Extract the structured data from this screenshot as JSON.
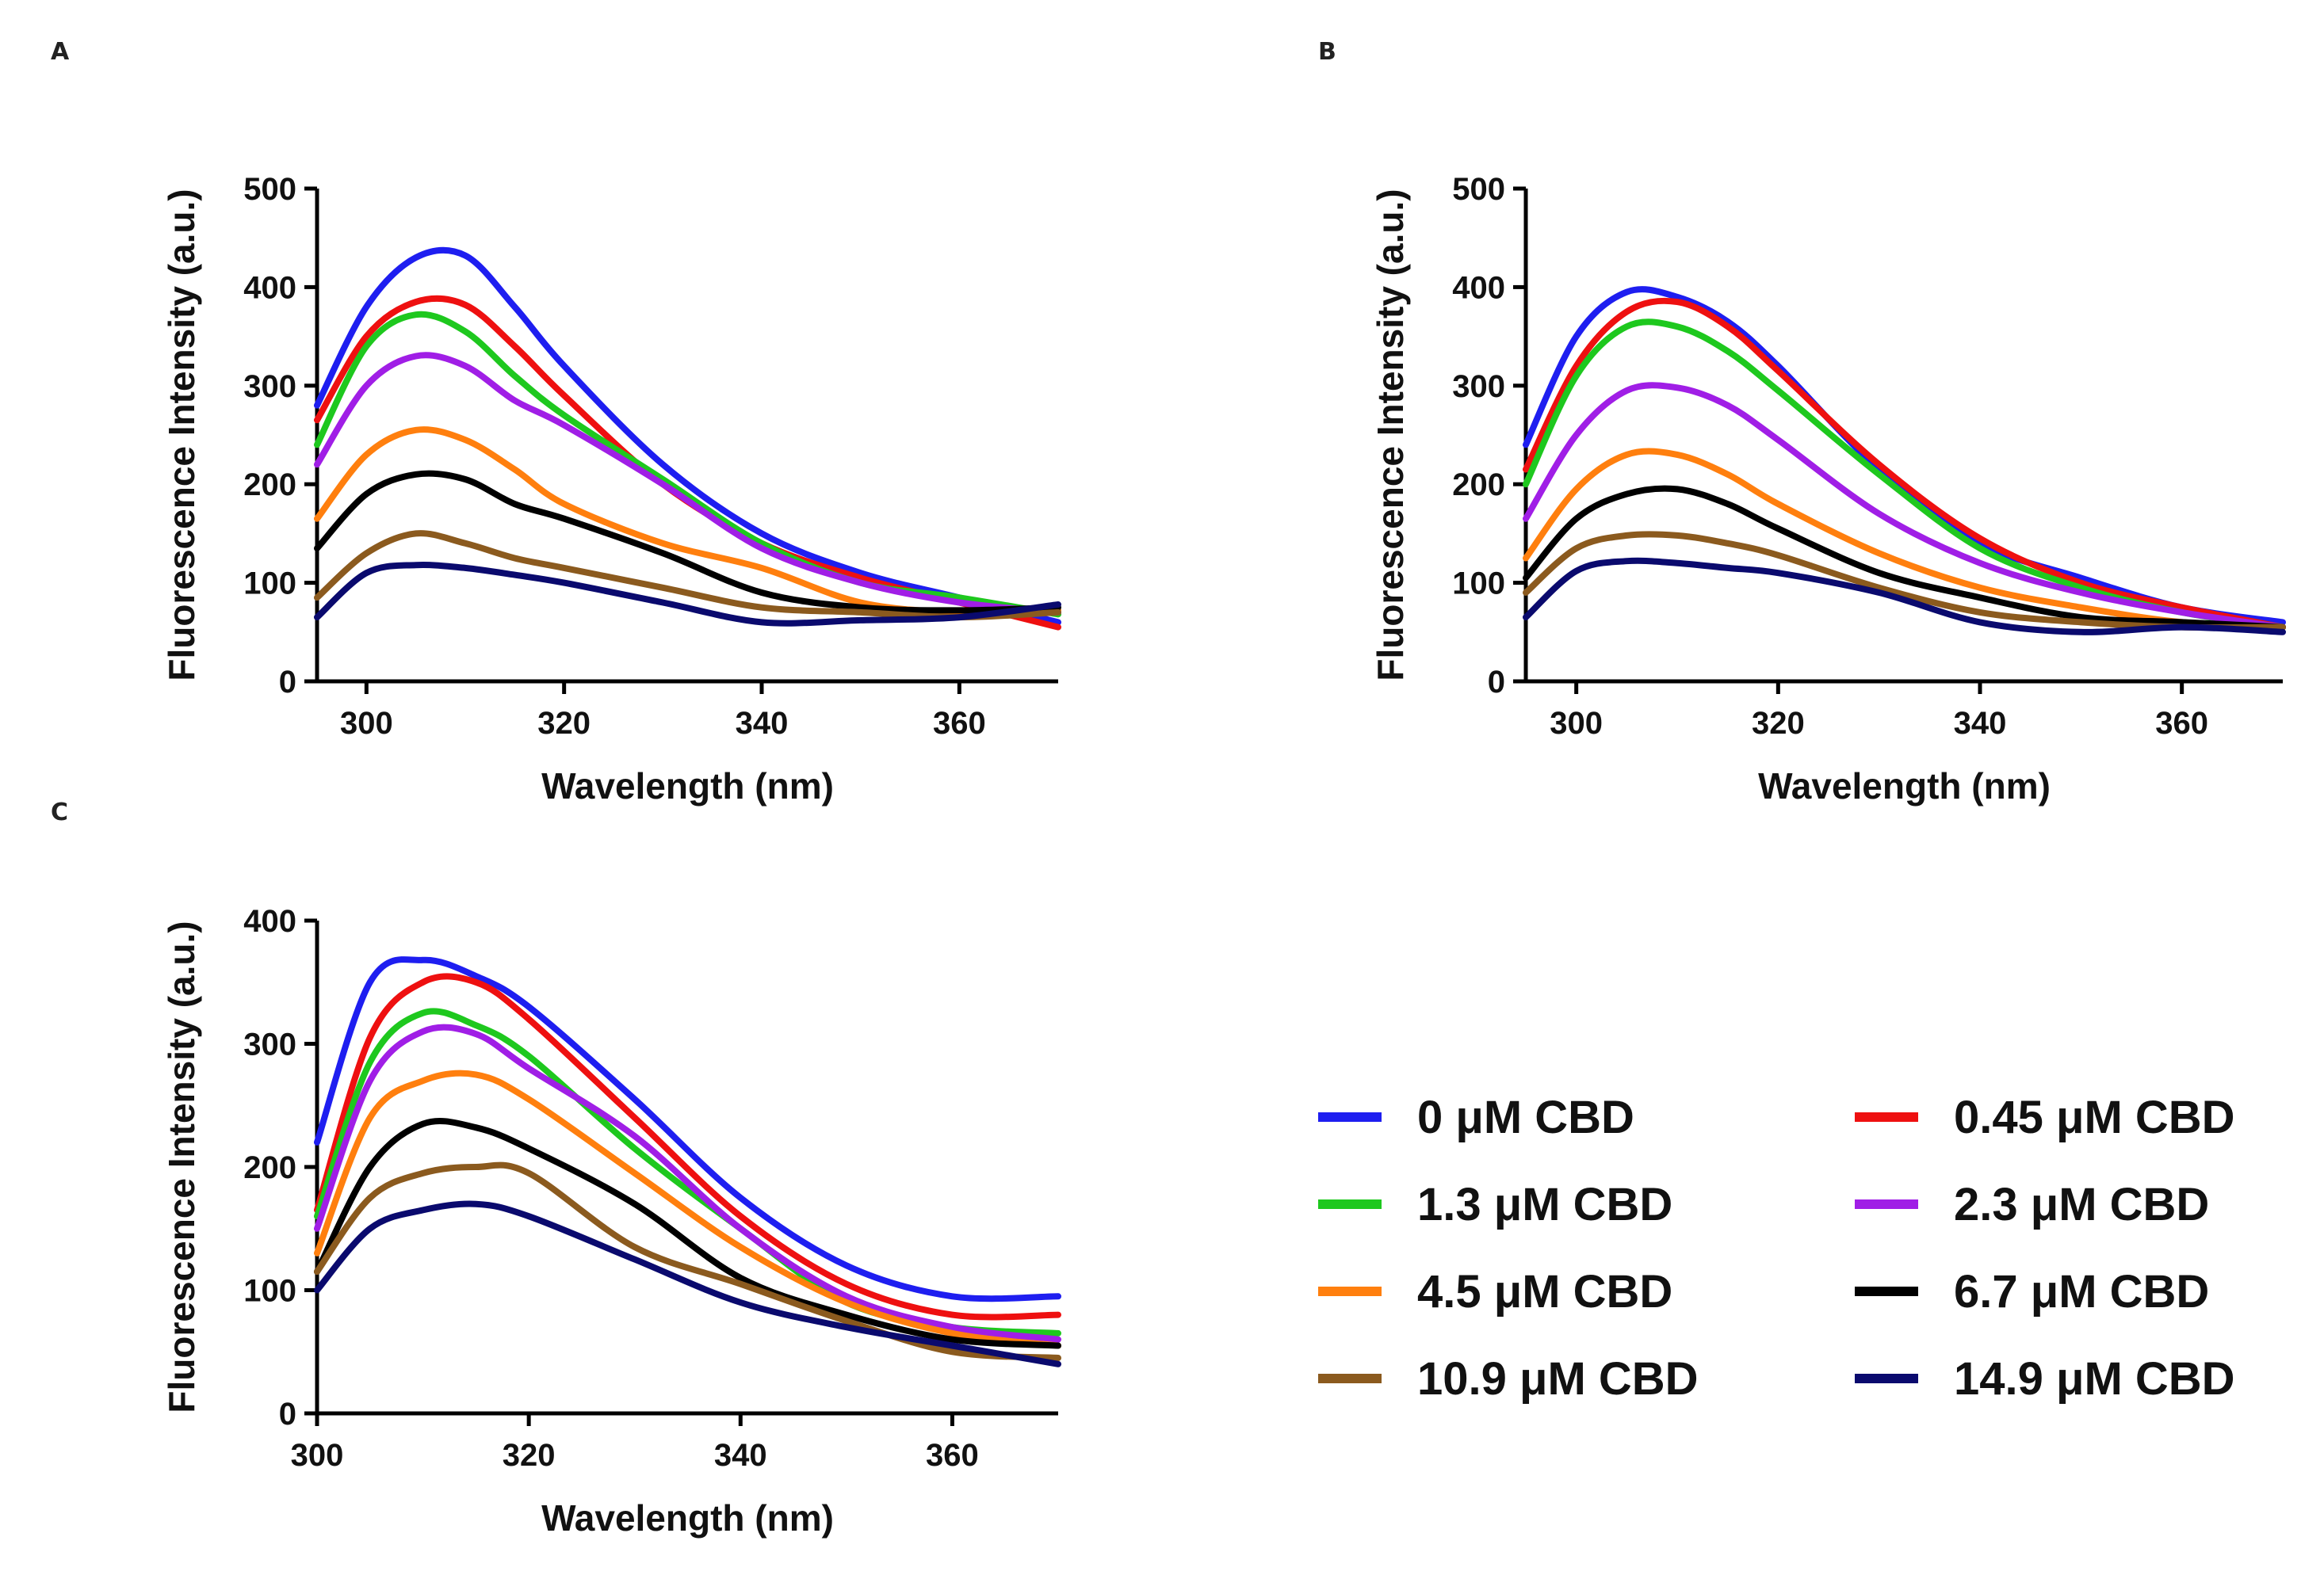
{
  "chart_data": [
    {
      "type": "line",
      "panel_label": "A",
      "title": "",
      "xlabel": "Wavelength (nm)",
      "ylabel": "Fluorescence Intensity (a.u.)",
      "xlim": [
        295,
        370
      ],
      "ylim": [
        0,
        500
      ],
      "xticks": [
        300,
        320,
        340,
        360
      ],
      "yticks": [
        0,
        100,
        200,
        300,
        400,
        500
      ],
      "x": [
        295,
        300,
        305,
        310,
        315,
        320,
        330,
        340,
        350,
        360,
        370
      ],
      "series": [
        {
          "name": "0 μM CBD",
          "values": [
            280,
            380,
            430,
            432,
            380,
            320,
            220,
            150,
            110,
            85,
            60
          ]
        },
        {
          "name": "0.45 μM CBD",
          "values": [
            265,
            350,
            385,
            382,
            340,
            290,
            200,
            140,
            105,
            80,
            55
          ]
        },
        {
          "name": "1.3 μM CBD",
          "values": [
            240,
            340,
            372,
            355,
            310,
            270,
            205,
            140,
            100,
            85,
            68
          ]
        },
        {
          "name": "2.3 μM CBD",
          "values": [
            220,
            300,
            330,
            320,
            285,
            260,
            200,
            135,
            100,
            80,
            70
          ]
        },
        {
          "name": "4.5 μM CBD",
          "values": [
            165,
            230,
            255,
            245,
            215,
            180,
            140,
            115,
            80,
            70,
            72
          ]
        },
        {
          "name": "6.7 μM CBD",
          "values": [
            135,
            190,
            210,
            205,
            180,
            165,
            130,
            90,
            75,
            72,
            75
          ]
        },
        {
          "name": "10.9 μM CBD",
          "values": [
            85,
            130,
            150,
            140,
            125,
            115,
            95,
            75,
            70,
            65,
            70
          ]
        },
        {
          "name": "14.9 μM CBD",
          "values": [
            65,
            110,
            118,
            115,
            108,
            100,
            80,
            60,
            62,
            65,
            78
          ]
        }
      ]
    },
    {
      "type": "line",
      "panel_label": "B",
      "title": "",
      "xlabel": "Wavelength (nm)",
      "ylabel": "Fluorescence Intensity (a.u.)",
      "xlim": [
        295,
        370
      ],
      "ylim": [
        0,
        500
      ],
      "xticks": [
        300,
        320,
        340,
        360
      ],
      "yticks": [
        0,
        100,
        200,
        300,
        400,
        500
      ],
      "x": [
        295,
        300,
        305,
        310,
        315,
        320,
        330,
        340,
        350,
        360,
        370
      ],
      "series": [
        {
          "name": "0 μM CBD",
          "values": [
            240,
            350,
            395,
            390,
            365,
            320,
            215,
            140,
            105,
            75,
            60
          ]
        },
        {
          "name": "0.45 μM CBD",
          "values": [
            215,
            320,
            375,
            385,
            360,
            315,
            220,
            145,
            100,
            75,
            55
          ]
        },
        {
          "name": "1.3 μM CBD",
          "values": [
            200,
            310,
            360,
            360,
            335,
            295,
            210,
            135,
            95,
            70,
            55
          ]
        },
        {
          "name": "2.3 μM CBD",
          "values": [
            165,
            250,
            295,
            298,
            280,
            245,
            170,
            120,
            90,
            70,
            55
          ]
        },
        {
          "name": "4.5 μM CBD",
          "values": [
            125,
            195,
            230,
            230,
            210,
            180,
            130,
            95,
            75,
            60,
            55
          ]
        },
        {
          "name": "6.7 μM CBD",
          "values": [
            105,
            165,
            190,
            195,
            180,
            155,
            110,
            85,
            65,
            60,
            55
          ]
        },
        {
          "name": "10.9 μM CBD",
          "values": [
            90,
            135,
            148,
            148,
            140,
            128,
            95,
            70,
            60,
            55,
            55
          ]
        },
        {
          "name": "14.9 μM CBD",
          "values": [
            65,
            112,
            122,
            120,
            115,
            110,
            90,
            60,
            50,
            55,
            50
          ]
        }
      ]
    },
    {
      "type": "line",
      "panel_label": "C",
      "title": "",
      "xlabel": "Wavelength (nm)",
      "ylabel": "Fluorescence Intensity (a.u.)",
      "xlim": [
        300,
        370
      ],
      "ylim": [
        0,
        400
      ],
      "xticks": [
        300,
        320,
        340,
        360
      ],
      "yticks": [
        0,
        100,
        200,
        300,
        400
      ],
      "x": [
        300,
        305,
        310,
        315,
        320,
        330,
        340,
        350,
        360,
        370
      ],
      "series": [
        {
          "name": "0 μM CBD",
          "values": [
            220,
            350,
            368,
            355,
            330,
            255,
            175,
            120,
            95,
            95
          ]
        },
        {
          "name": "0.45 μM CBD",
          "values": [
            165,
            305,
            350,
            350,
            320,
            240,
            160,
            105,
            80,
            80
          ]
        },
        {
          "name": "1.3 μM CBD",
          "values": [
            160,
            285,
            325,
            315,
            290,
            215,
            150,
            90,
            70,
            65
          ]
        },
        {
          "name": "2.3 μM CBD",
          "values": [
            150,
            270,
            310,
            308,
            280,
            225,
            150,
            95,
            70,
            60
          ]
        },
        {
          "name": "4.5 μM CBD",
          "values": [
            130,
            240,
            270,
            275,
            255,
            195,
            135,
            90,
            65,
            55
          ]
        },
        {
          "name": "6.7 μM CBD",
          "values": [
            115,
            200,
            235,
            232,
            215,
            170,
            110,
            80,
            60,
            55
          ]
        },
        {
          "name": "10.9 μM CBD",
          "values": [
            115,
            175,
            195,
            200,
            195,
            135,
            105,
            75,
            50,
            45
          ]
        },
        {
          "name": "14.9 μM CBD",
          "values": [
            100,
            150,
            165,
            170,
            160,
            125,
            90,
            70,
            55,
            40
          ]
        }
      ]
    }
  ],
  "legend": [
    {
      "label": "0 μM CBD",
      "color": "#1e1ef0"
    },
    {
      "label": "0.45 μM CBD",
      "color": "#ee1010"
    },
    {
      "label": "1.3 μM CBD",
      "color": "#1ec81e"
    },
    {
      "label": "2.3 μM CBD",
      "color": "#a01ee6"
    },
    {
      "label": "4.5 μM CBD",
      "color": "#ff7f0e"
    },
    {
      "label": "6.7 μM CBD",
      "color": "#000000"
    },
    {
      "label": "10.9 μM CBD",
      "color": "#8b5a1e"
    },
    {
      "label": "14.9 μM CBD",
      "color": "#0a0a6e"
    }
  ]
}
